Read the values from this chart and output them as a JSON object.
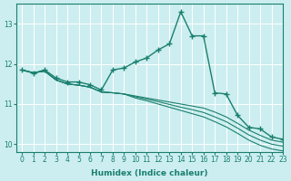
{
  "xlabel": "Humidex (Indice chaleur)",
  "background_color": "#cceef0",
  "grid_color": "#b0dde0",
  "line_color": "#1a7f6e",
  "xlim": [
    -0.5,
    23
  ],
  "ylim": [
    9.8,
    13.5
  ],
  "yticks": [
    10,
    11,
    12,
    13
  ],
  "xticks": [
    0,
    1,
    2,
    3,
    4,
    5,
    6,
    7,
    8,
    9,
    10,
    11,
    12,
    13,
    14,
    15,
    16,
    17,
    18,
    19,
    20,
    21,
    22,
    23
  ],
  "series": [
    [
      11.85,
      11.77,
      11.85,
      11.65,
      11.55,
      11.55,
      11.48,
      11.35,
      11.85,
      11.9,
      12.05,
      12.15,
      12.35,
      12.5,
      13.3,
      12.7,
      12.7,
      11.28,
      11.25,
      10.72,
      10.42,
      10.38,
      10.18,
      10.12
    ],
    [
      11.85,
      11.78,
      11.82,
      11.6,
      11.5,
      11.47,
      11.42,
      11.3,
      11.28,
      11.25,
      11.2,
      11.15,
      11.1,
      11.05,
      11.0,
      10.95,
      10.9,
      10.8,
      10.68,
      10.52,
      10.35,
      10.22,
      10.1,
      10.05
    ],
    [
      11.85,
      11.78,
      11.82,
      11.6,
      11.5,
      11.47,
      11.42,
      11.3,
      11.28,
      11.25,
      11.18,
      11.12,
      11.06,
      10.99,
      10.92,
      10.86,
      10.79,
      10.68,
      10.56,
      10.4,
      10.23,
      10.1,
      10.0,
      9.95
    ],
    [
      11.85,
      11.78,
      11.82,
      11.6,
      11.5,
      11.47,
      11.42,
      11.3,
      11.28,
      11.25,
      11.15,
      11.08,
      11.0,
      10.92,
      10.84,
      10.76,
      10.68,
      10.56,
      10.43,
      10.27,
      10.1,
      9.97,
      9.88,
      9.83
    ]
  ]
}
